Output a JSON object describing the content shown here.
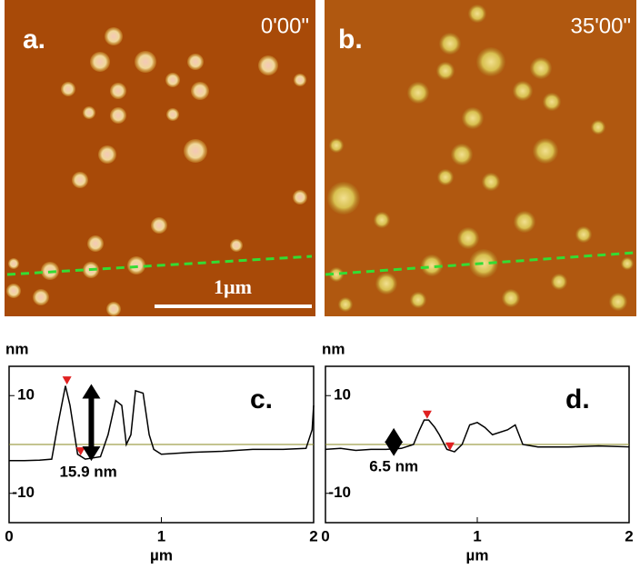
{
  "images": [
    {
      "label": "a.",
      "time": "0'00\""
    },
    {
      "label": "b.",
      "time": "35'00\""
    }
  ],
  "scale_bar": "1µm",
  "chart_data": [
    {
      "type": "line",
      "label": "c.",
      "annotation": "15.9 nm",
      "ylabel": "nm",
      "xlabel": "µm",
      "x": [
        0,
        0.1,
        0.2,
        0.28,
        0.32,
        0.37,
        0.4,
        0.45,
        0.5,
        0.6,
        0.65,
        0.7,
        0.74,
        0.77,
        0.8,
        0.83,
        0.88,
        0.92,
        0.95,
        1.0,
        1.2,
        1.4,
        1.6,
        1.8,
        1.95,
        1.99,
        2.0
      ],
      "values": [
        -3.3,
        -3.3,
        -3.2,
        -3,
        4,
        12,
        8,
        -2,
        -3,
        -2.5,
        2,
        9,
        8,
        0,
        2,
        11,
        10.5,
        2,
        -1,
        -2,
        -1.6,
        -1.4,
        -1,
        -1,
        -0.8,
        3,
        8
      ],
      "color": "#000000",
      "cursors": {
        "x": [
          0.38,
          0.47
        ],
        "y": [
          13,
          -1.5
        ]
      },
      "xlim": [
        0,
        2
      ],
      "ylim": [
        -16,
        16
      ],
      "xticks": [
        0,
        1,
        2
      ],
      "yticks": [
        10,
        -10
      ]
    },
    {
      "type": "line",
      "label": "d.",
      "annotation": "6.5 nm",
      "ylabel": "nm",
      "xlabel": "µm",
      "x": [
        0,
        0.1,
        0.2,
        0.3,
        0.4,
        0.5,
        0.58,
        0.62,
        0.65,
        0.68,
        0.72,
        0.75,
        0.8,
        0.85,
        0.9,
        0.95,
        1.0,
        1.05,
        1.1,
        1.2,
        1.25,
        1.3,
        1.4,
        1.6,
        1.8,
        2.0
      ],
      "values": [
        -1,
        -0.8,
        -1.2,
        -1,
        -1,
        -0.8,
        0,
        3,
        5,
        5,
        3.5,
        2,
        -1,
        -1.5,
        0,
        4,
        4.5,
        3.5,
        2,
        3,
        4,
        0,
        -0.5,
        -0.5,
        -0.3,
        -0.5
      ],
      "color": "#000000",
      "cursors": {
        "x": [
          0.67,
          0.82
        ],
        "y": [
          6,
          -0.5
        ]
      },
      "xlim": [
        0,
        2
      ],
      "ylim": [
        -16,
        16
      ],
      "xticks": [
        0,
        1,
        2
      ],
      "yticks": [
        10,
        -10
      ]
    }
  ]
}
